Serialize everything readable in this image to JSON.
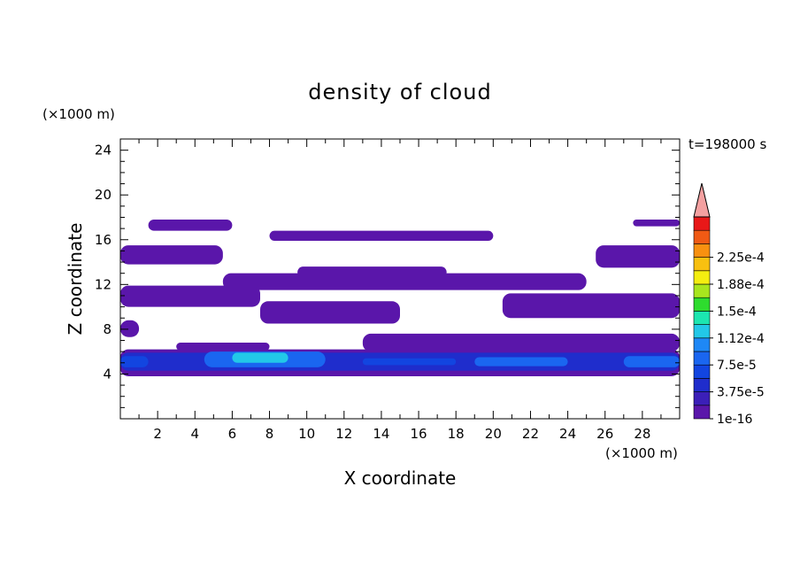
{
  "chart_data": {
    "type": "heatmap",
    "title": "density of cloud",
    "xlabel": "X coordinate",
    "ylabel": "Z coordinate",
    "x_unit": "(×1000 m)",
    "y_unit": "(×1000 m)",
    "time_label": "t=198000 s",
    "xlim": [
      0,
      30
    ],
    "ylim": [
      0,
      25
    ],
    "x_ticks": [
      2,
      4,
      6,
      8,
      10,
      12,
      14,
      16,
      18,
      20,
      22,
      24,
      26,
      28
    ],
    "y_ticks": [
      4,
      8,
      12,
      16,
      20,
      24
    ],
    "colorbar": {
      "labels": [
        "2.25e-4",
        "1.88e-4",
        "1.5e-4",
        "1.12e-4",
        "7.5e-5",
        "3.75e-5",
        "1e-16"
      ],
      "levels": [
        1e-16,
        1.875e-05,
        3.75e-05,
        5.625e-05,
        7.5e-05,
        9.375e-05,
        0.0001125,
        0.00013125,
        0.00015,
        0.00016875,
        0.0001875,
        0.00020625,
        0.000225,
        0.00024375
      ],
      "colors": [
        "#5a16aa",
        "#3b1fb8",
        "#1f2dcc",
        "#1245e0",
        "#1a66f0",
        "#1e88f6",
        "#22c8e8",
        "#1ce6b0",
        "#2edc2e",
        "#a8e61e",
        "#f4ee10",
        "#f8c010",
        "#f89010",
        "#f05a14",
        "#e81818"
      ],
      "extend_color": "#f4a0a0"
    },
    "regions": [
      {
        "x": [
          0,
          30
        ],
        "z": [
          3.8,
          6.2
        ],
        "level": 1e-16
      },
      {
        "x": [
          0,
          30
        ],
        "z": [
          4.3,
          5.9
        ],
        "level": 3.75e-05
      },
      {
        "x": [
          4.5,
          11
        ],
        "z": [
          4.6,
          6.0
        ],
        "level": 7.5e-05
      },
      {
        "x": [
          6,
          9
        ],
        "z": [
          5.0,
          5.9
        ],
        "level": 0.0001125
      },
      {
        "x": [
          19,
          24
        ],
        "z": [
          4.7,
          5.5
        ],
        "level": 7.5e-05
      },
      {
        "x": [
          27,
          30
        ],
        "z": [
          4.6,
          5.6
        ],
        "level": 7.5e-05
      },
      {
        "x": [
          0,
          1.5
        ],
        "z": [
          4.6,
          5.6
        ],
        "level": 5.625e-05
      },
      {
        "x": [
          13,
          18
        ],
        "z": [
          4.8,
          5.4
        ],
        "level": 5.625e-05
      },
      {
        "x": [
          13,
          30
        ],
        "z": [
          6.0,
          7.6
        ],
        "level": 1e-16
      },
      {
        "x": [
          3,
          8
        ],
        "z": [
          6.1,
          6.8
        ],
        "level": 1e-16
      },
      {
        "x": [
          0,
          1
        ],
        "z": [
          7.3,
          8.8
        ],
        "level": 1e-16
      },
      {
        "x": [
          7.5,
          15
        ],
        "z": [
          8.5,
          10.5
        ],
        "level": 1e-16
      },
      {
        "x": [
          20.5,
          30
        ],
        "z": [
          9.0,
          11.2
        ],
        "level": 1e-16
      },
      {
        "x": [
          0,
          7.5
        ],
        "z": [
          10.0,
          11.9
        ],
        "level": 1e-16
      },
      {
        "x": [
          5.5,
          25
        ],
        "z": [
          11.5,
          13.0
        ],
        "level": 1e-16
      },
      {
        "x": [
          9.5,
          17.5
        ],
        "z": [
          12.6,
          13.6
        ],
        "level": 1e-16
      },
      {
        "x": [
          0,
          5.5
        ],
        "z": [
          13.8,
          15.5
        ],
        "level": 1e-16
      },
      {
        "x": [
          25.5,
          30
        ],
        "z": [
          13.5,
          15.5
        ],
        "level": 1e-16
      },
      {
        "x": [
          8,
          20
        ],
        "z": [
          15.9,
          16.8
        ],
        "level": 1e-16
      },
      {
        "x": [
          1.5,
          6
        ],
        "z": [
          16.8,
          17.8
        ],
        "level": 1e-16
      },
      {
        "x": [
          27.5,
          30
        ],
        "z": [
          17.2,
          17.8
        ],
        "level": 1e-16
      }
    ]
  }
}
